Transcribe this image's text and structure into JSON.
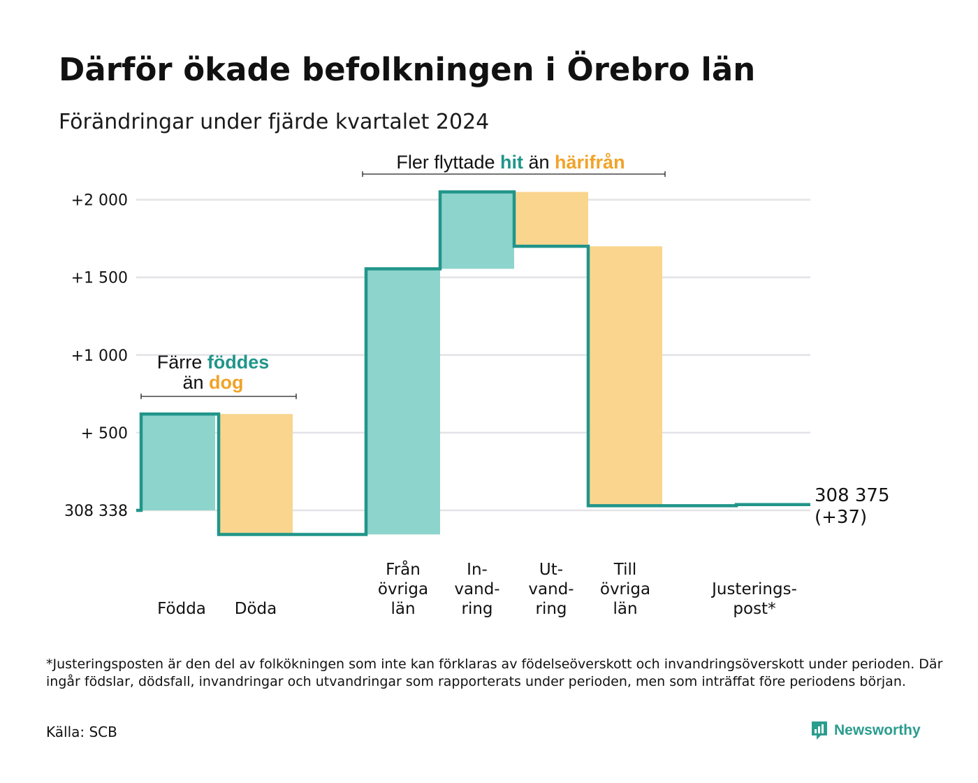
{
  "title": "Därför ökade befolkningen i Örebro län",
  "subtitle": "Förändringar under fjärde kvartalet 2024",
  "colors": {
    "inflow": "#8dd4cc",
    "outflow": "#f9d58e",
    "line": "#21958a",
    "highlight_teal": "#21958a",
    "highlight_orange": "#f0a329",
    "grid": "#e3e3e8"
  },
  "chart_data": {
    "type": "waterfall",
    "baseline": 308338,
    "baseline_label": "308 338",
    "y_ticks": [
      {
        "value": 0,
        "label": "308 338"
      },
      {
        "value": 500,
        "label": "+  500"
      },
      {
        "value": 1000,
        "label": "+1 000"
      },
      {
        "value": 1500,
        "label": "+1 500"
      },
      {
        "value": 2000,
        "label": "+2 000"
      }
    ],
    "ylim": [
      -200,
      2100
    ],
    "bars": [
      {
        "lines": [
          "Födda"
        ],
        "kind": "inflow",
        "from": 0,
        "to": 620
      },
      {
        "lines": [
          "Döda"
        ],
        "kind": "outflow",
        "from": 620,
        "to": -155
      },
      {
        "lines": [
          "Från",
          "övriga",
          "län"
        ],
        "kind": "inflow",
        "from": -155,
        "to": 1555
      },
      {
        "lines": [
          "In-",
          "vand-",
          "ring"
        ],
        "kind": "inflow",
        "from": 1555,
        "to": 2050
      },
      {
        "lines": [
          "Ut-",
          "vand-",
          "ring"
        ],
        "kind": "outflow",
        "from": 2050,
        "to": 1700
      },
      {
        "lines": [
          "Till",
          "övriga",
          "län"
        ],
        "kind": "outflow",
        "from": 1700,
        "to": 30
      },
      {
        "lines": [
          "Justerings-",
          "post*"
        ],
        "kind": "adjustment",
        "from": 30,
        "to": 37
      }
    ],
    "end_value_label": "308 375",
    "end_change_label": "(+37)",
    "annotations": {
      "births_deaths": {
        "prefix": "Färre",
        "word1": "föddes",
        "middle": "än",
        "word2": "dog"
      },
      "migration": {
        "prefix": "Fler flyttade",
        "word1": "hit",
        "middle": "än",
        "word2": "härifrån"
      }
    }
  },
  "footnote": "*Justeringsposten är den del av folkökningen som inte kan förklaras av födelseöverskott och invandringsöverskott under perioden. Där ingår födslar, dödsfall, invandringar och utvandringar som rapporterats under perioden, men som inträffat före periodens början.",
  "source": "Källa: SCB",
  "brand": {
    "name": "Newsworthy",
    "logo_icon": "newsworthy-logo-icon"
  }
}
